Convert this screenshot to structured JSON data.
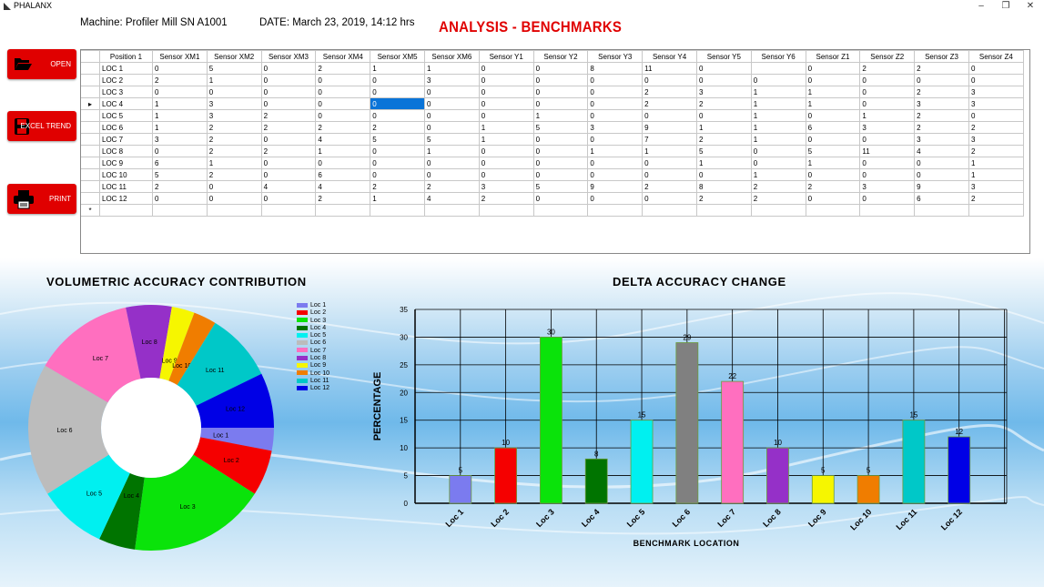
{
  "window": {
    "title": "PHALANX",
    "minimize": "–",
    "restore": "❐",
    "close": "✕"
  },
  "header": {
    "machine": "Machine:  Profiler Mill SN A1001",
    "date": "DATE:  March 23, 2019, 14:12 hrs",
    "page_title": "ANALYSIS - BENCHMARKS"
  },
  "sidebar": {
    "open_label": "OPEN",
    "excel_label": "EXCEL TREND",
    "print_label": "PRINT"
  },
  "table": {
    "columns": [
      "Position 1",
      "Sensor XM1",
      "Sensor XM2",
      "Sensor XM3",
      "Sensor XM4",
      "Sensor XM5",
      "Sensor XM6",
      "Sensor Y1",
      "Sensor Y2",
      "Sensor Y3",
      "Sensor Y4",
      "Sensor Y5",
      "Sensor Y6",
      "Sensor Z1",
      "Sensor Z2",
      "Sensor Z3",
      "Sensor Z4"
    ],
    "current_row_marker": "▸",
    "new_row_marker": "*",
    "rows": [
      [
        "LOC 1",
        "0",
        "5",
        "0",
        "2",
        "1",
        "1",
        "0",
        "0",
        "8",
        "11",
        "0",
        "",
        "0",
        "2",
        "2",
        "0"
      ],
      [
        "LOC 2",
        "2",
        "1",
        "0",
        "0",
        "0",
        "3",
        "0",
        "0",
        "0",
        "0",
        "0",
        "0",
        "0",
        "0",
        "0",
        "0"
      ],
      [
        "LOC 3",
        "0",
        "0",
        "0",
        "0",
        "0",
        "0",
        "0",
        "0",
        "0",
        "2",
        "3",
        "1",
        "1",
        "0",
        "2",
        "3"
      ],
      [
        "LOC 4",
        "1",
        "3",
        "0",
        "0",
        "0",
        "0",
        "0",
        "0",
        "0",
        "2",
        "2",
        "1",
        "1",
        "0",
        "3",
        "3"
      ],
      [
        "LOC 5",
        "1",
        "3",
        "2",
        "0",
        "0",
        "0",
        "0",
        "1",
        "0",
        "0",
        "0",
        "1",
        "0",
        "1",
        "2",
        "0"
      ],
      [
        "LOC 6",
        "1",
        "2",
        "2",
        "2",
        "2",
        "0",
        "1",
        "5",
        "3",
        "9",
        "1",
        "1",
        "6",
        "3",
        "2",
        "2"
      ],
      [
        "LOC 7",
        "3",
        "2",
        "0",
        "4",
        "5",
        "5",
        "1",
        "0",
        "0",
        "7",
        "2",
        "1",
        "0",
        "0",
        "3",
        "3"
      ],
      [
        "LOC 8",
        "0",
        "2",
        "2",
        "1",
        "0",
        "1",
        "0",
        "0",
        "1",
        "1",
        "5",
        "0",
        "5",
        "11",
        "4",
        "2"
      ],
      [
        "LOC 9",
        "6",
        "1",
        "0",
        "0",
        "0",
        "0",
        "0",
        "0",
        "0",
        "0",
        "1",
        "0",
        "1",
        "0",
        "0",
        "1"
      ],
      [
        "LOC 10",
        "5",
        "2",
        "0",
        "6",
        "0",
        "0",
        "0",
        "0",
        "0",
        "0",
        "0",
        "1",
        "0",
        "0",
        "0",
        "1"
      ],
      [
        "LOC 11",
        "2",
        "0",
        "4",
        "4",
        "2",
        "2",
        "3",
        "5",
        "9",
        "2",
        "8",
        "2",
        "2",
        "3",
        "9",
        "3"
      ],
      [
        "LOC 12",
        "0",
        "0",
        "0",
        "2",
        "1",
        "4",
        "2",
        "0",
        "0",
        "0",
        "2",
        "2",
        "0",
        "0",
        "6",
        "2"
      ]
    ]
  },
  "pie": {
    "title": "VOLUMETRIC ACCURACY CONTRIBUTION",
    "labels": [
      "Loc 1",
      "Loc 2",
      "Loc 3",
      "Loc 4",
      "Loc 5",
      "Loc 6",
      "Loc 7",
      "Loc 8",
      "Loc 9",
      "Loc 10",
      "Loc 11",
      "Loc 12"
    ],
    "values": [
      5,
      10,
      30,
      8,
      15,
      29,
      22,
      10,
      5,
      5,
      15,
      12
    ],
    "colors": [
      "#7b7bef",
      "#f50000",
      "#0ae30a",
      "#007400",
      "#00f0f0",
      "#bcbcbc",
      "#ff6fbf",
      "#9530c8",
      "#f6f600",
      "#f07d00",
      "#00c8c8",
      "#0000e6"
    ]
  },
  "chart_data": {
    "type": "bar",
    "title": "DELTA ACCURACY CHANGE",
    "xlabel": "BENCHMARK LOCATION",
    "ylabel": "PERCENTAGE",
    "categories": [
      "Loc 1",
      "Loc 2",
      "Loc 3",
      "Loc 4",
      "Loc 5",
      "Loc 6",
      "Loc 7",
      "Loc 8",
      "Loc 9",
      "Loc 10",
      "Loc 11",
      "Loc 12"
    ],
    "values": [
      5,
      10,
      30,
      8,
      15,
      29,
      22,
      10,
      5,
      5,
      15,
      12
    ],
    "data_labels": [
      "5",
      "10",
      "30",
      "8",
      "15",
      "29",
      "22",
      "10",
      "5",
      "5",
      "15",
      "12"
    ],
    "colors": [
      "#7b7bef",
      "#f50000",
      "#0ae30a",
      "#007400",
      "#00f0f0",
      "#808080",
      "#ff6fbf",
      "#9530c8",
      "#f6f600",
      "#f07d00",
      "#00c8c8",
      "#0000e6"
    ],
    "yticks": [
      "0",
      "5",
      "10",
      "15",
      "20",
      "25",
      "30",
      "35"
    ],
    "ylim": [
      0,
      35
    ],
    "grid": true
  }
}
